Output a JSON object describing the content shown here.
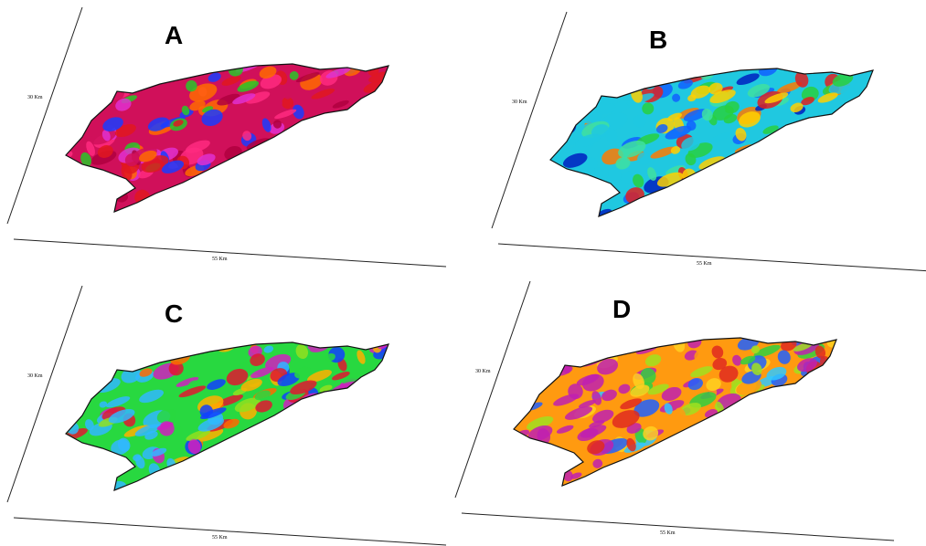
{
  "panels": [
    {
      "label": "A",
      "y_axis_label": "30 Km",
      "x_axis_label": "55 Km"
    },
    {
      "label": "B",
      "y_axis_label": "30 Km",
      "x_axis_label": "55 Km"
    },
    {
      "label": "C",
      "y_axis_label": "30 Km",
      "x_axis_label": "55 Km"
    },
    {
      "label": "D",
      "y_axis_label": "30 Km",
      "x_axis_label": "55 Km"
    }
  ]
}
